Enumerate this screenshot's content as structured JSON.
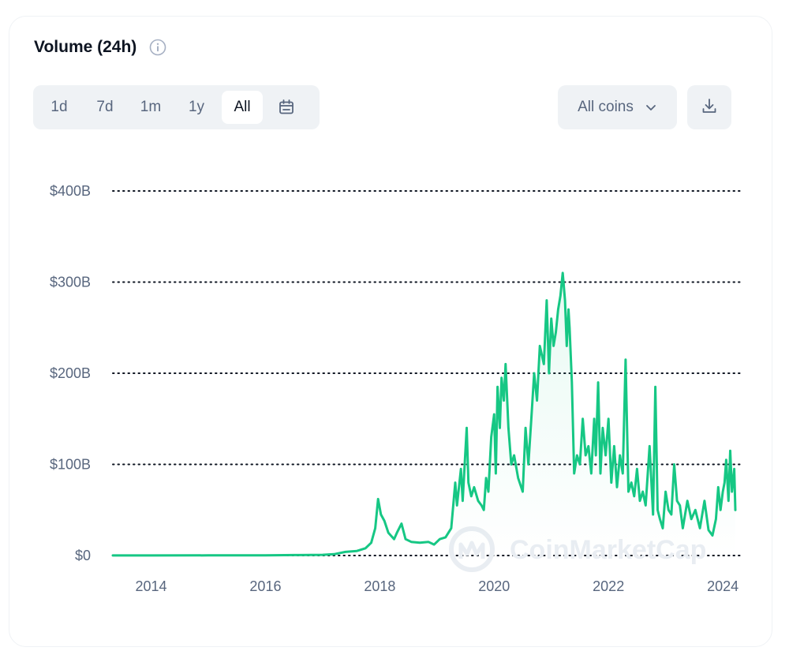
{
  "header": {
    "title": "Volume (24h)",
    "info_icon": "info-icon"
  },
  "toolbar": {
    "ranges": [
      {
        "label": "1d",
        "active": false
      },
      {
        "label": "7d",
        "active": false
      },
      {
        "label": "1m",
        "active": false
      },
      {
        "label": "1y",
        "active": false
      },
      {
        "label": "All",
        "active": true
      }
    ],
    "calendar_icon": "calendar-icon",
    "coin_select": {
      "value": "All coins",
      "icon": "chevron-down-icon"
    },
    "download_icon": "download-icon"
  },
  "watermark": {
    "text": "CoinMarketCap",
    "icon": "coinmarketcap-logo"
  },
  "colors": {
    "line": "#16c784",
    "grid": "#0d1421",
    "tick_text": "#58667e",
    "button_bg": "#eff2f5"
  },
  "chart_data": {
    "type": "area",
    "title": "",
    "xlabel": "",
    "ylabel": "",
    "y_ticks": [
      "$0",
      "$100B",
      "$200B",
      "$300B",
      "$400B"
    ],
    "y_tick_values": [
      0,
      100,
      200,
      300,
      400
    ],
    "x_ticks": [
      "2014",
      "2016",
      "2018",
      "2020",
      "2022",
      "2024"
    ],
    "x_tick_values": [
      2014,
      2016,
      2018,
      2020,
      2022,
      2024
    ],
    "xlim": [
      2013.33,
      2024.33
    ],
    "ylim": [
      0,
      400
    ],
    "grid": true,
    "legend": "none",
    "series": [
      {
        "unit": "$B",
        "x": [
          2013.33,
          2014.0,
          2015.0,
          2016.0,
          2016.5,
          2017.0,
          2017.2,
          2017.4,
          2017.6,
          2017.75,
          2017.85,
          2017.92,
          2017.97,
          2018.02,
          2018.08,
          2018.15,
          2018.25,
          2018.3,
          2018.38,
          2018.45,
          2018.55,
          2018.7,
          2018.85,
          2018.95,
          2019.05,
          2019.15,
          2019.25,
          2019.32,
          2019.35,
          2019.42,
          2019.45,
          2019.52,
          2019.55,
          2019.6,
          2019.65,
          2019.72,
          2019.78,
          2019.82,
          2019.86,
          2019.9,
          2019.95,
          2020.0,
          2020.03,
          2020.06,
          2020.1,
          2020.13,
          2020.17,
          2020.2,
          2020.25,
          2020.3,
          2020.35,
          2020.42,
          2020.5,
          2020.55,
          2020.6,
          2020.65,
          2020.7,
          2020.75,
          2020.8,
          2020.87,
          2020.92,
          2020.96,
          2021.0,
          2021.04,
          2021.08,
          2021.12,
          2021.16,
          2021.2,
          2021.24,
          2021.27,
          2021.3,
          2021.32,
          2021.36,
          2021.4,
          2021.45,
          2021.5,
          2021.55,
          2021.6,
          2021.65,
          2021.7,
          2021.75,
          2021.78,
          2021.82,
          2021.86,
          2021.9,
          2021.95,
          2022.0,
          2022.05,
          2022.1,
          2022.15,
          2022.2,
          2022.25,
          2022.3,
          2022.35,
          2022.4,
          2022.45,
          2022.5,
          2022.55,
          2022.6,
          2022.65,
          2022.72,
          2022.78,
          2022.82,
          2022.86,
          2022.9,
          2022.95,
          2023.0,
          2023.05,
          2023.1,
          2023.15,
          2023.2,
          2023.25,
          2023.3,
          2023.38,
          2023.45,
          2023.52,
          2023.6,
          2023.68,
          2023.75,
          2023.82,
          2023.88,
          2023.92,
          2023.96,
          2024.0,
          2024.03,
          2024.06,
          2024.1,
          2024.13,
          2024.16,
          2024.2,
          2024.22
        ],
        "y": [
          0.1,
          0.1,
          0.2,
          0.3,
          0.5,
          0.8,
          1.5,
          4,
          5,
          8,
          14,
          30,
          62,
          45,
          38,
          25,
          18,
          25,
          35,
          18,
          15,
          14,
          15,
          12,
          18,
          20,
          30,
          80,
          55,
          95,
          60,
          140,
          80,
          65,
          75,
          60,
          55,
          50,
          85,
          70,
          130,
          155,
          90,
          185,
          140,
          195,
          170,
          210,
          140,
          100,
          110,
          85,
          70,
          140,
          100,
          150,
          200,
          170,
          230,
          210,
          280,
          200,
          260,
          230,
          245,
          270,
          285,
          310,
          280,
          230,
          270,
          250,
          190,
          90,
          110,
          100,
          150,
          110,
          120,
          90,
          150,
          110,
          190,
          90,
          140,
          110,
          150,
          80,
          120,
          75,
          110,
          90,
          215,
          70,
          80,
          65,
          95,
          60,
          70,
          55,
          120,
          45,
          185,
          50,
          40,
          30,
          70,
          50,
          45,
          100,
          60,
          55,
          30,
          60,
          40,
          50,
          30,
          60,
          28,
          22,
          40,
          75,
          50,
          70,
          80,
          105,
          60,
          115,
          70,
          95,
          50
        ]
      }
    ]
  }
}
